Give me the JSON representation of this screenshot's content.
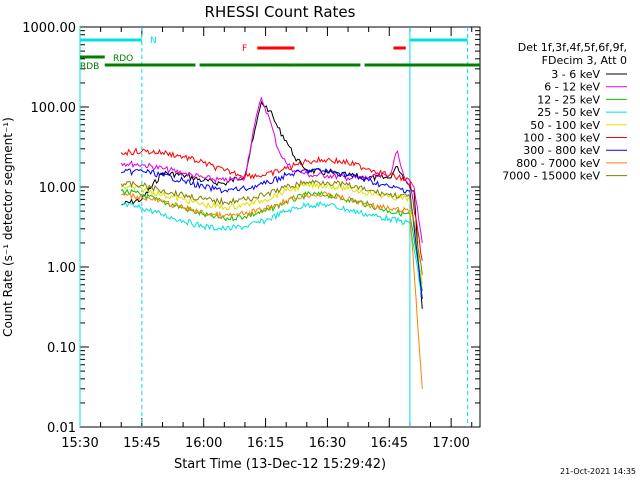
{
  "chart_data": {
    "type": "line",
    "title": "RHESSI Count Rates",
    "xlabel": "Start Time (13-Dec-12 15:29:42)",
    "ylabel": "Count Rate (s⁻¹ detector segment⁻¹)",
    "yscale": "log",
    "xlim": [
      "15:30",
      "17:07"
    ],
    "ylim": [
      0.01,
      1000
    ],
    "x_ticks": [
      "15:30",
      "15:45",
      "16:00",
      "16:15",
      "16:30",
      "16:45",
      "17:00"
    ],
    "y_ticks": [
      "0.01",
      "0.10",
      "1.00",
      "10.00",
      "100.00",
      "1000.00"
    ],
    "legend_header": [
      "Det 1f,3f,4f,5f,6f,9f,",
      "FDecim 3, Att 0"
    ],
    "legend_position": "right",
    "timestamp": "21-Oct-2021 14:35",
    "series": [
      {
        "name": "3 - 6 keV",
        "color": "#000000",
        "x": [
          "15:40",
          "15:45",
          "15:50",
          "15:55",
          "16:00",
          "16:05",
          "16:10",
          "16:12",
          "16:14",
          "16:16",
          "16:18",
          "16:20",
          "16:22",
          "16:24",
          "16:26",
          "16:30",
          "16:35",
          "16:40",
          "16:45",
          "16:47",
          "16:49",
          "16:51",
          "16:52",
          "16:53"
        ],
        "y": [
          6,
          7,
          15,
          14,
          12,
          11,
          14,
          40,
          115,
          90,
          55,
          38,
          24,
          18,
          16,
          15,
          14,
          13,
          13,
          18,
          12,
          9,
          1.5,
          0.3
        ]
      },
      {
        "name": "6 - 12 keV",
        "color": "#e000e0",
        "x": [
          "15:40",
          "15:45",
          "15:50",
          "15:55",
          "16:00",
          "16:05",
          "16:10",
          "16:12",
          "16:14",
          "16:16",
          "16:18",
          "16:20",
          "16:22",
          "16:24",
          "16:26",
          "16:30",
          "16:35",
          "16:40",
          "16:45",
          "16:47",
          "16:49",
          "16:51",
          "16:53"
        ],
        "y": [
          20,
          19,
          17,
          15,
          13,
          12,
          13,
          50,
          130,
          70,
          30,
          20,
          16,
          15,
          14,
          14,
          13,
          13,
          14,
          28,
          12,
          10,
          2
        ]
      },
      {
        "name": "12 - 25 keV",
        "color": "#00c800",
        "x": [
          "15:40",
          "15:45",
          "15:50",
          "15:55",
          "16:00",
          "16:05",
          "16:10",
          "16:15",
          "16:20",
          "16:25",
          "16:30",
          "16:35",
          "16:40",
          "16:45",
          "16:50",
          "16:53"
        ],
        "y": [
          9,
          8,
          6.5,
          5.5,
          4.5,
          4,
          4.3,
          5,
          6.5,
          8,
          8,
          7,
          6,
          5,
          4.5,
          0.5
        ]
      },
      {
        "name": "25 - 50 keV",
        "color": "#00e0e0",
        "x": [
          "15:40",
          "15:45",
          "15:50",
          "15:55",
          "16:00",
          "16:05",
          "16:10",
          "16:15",
          "16:20",
          "16:25",
          "16:30",
          "16:35",
          "16:40",
          "16:45",
          "16:50",
          "16:53"
        ],
        "y": [
          6,
          5.5,
          4.5,
          3.8,
          3.2,
          3,
          3.2,
          3.8,
          5,
          6,
          6,
          5.2,
          4.5,
          4,
          3.5,
          0.4
        ]
      },
      {
        "name": "50 - 100 keV",
        "color": "#e0e000",
        "x": [
          "15:40",
          "15:45",
          "15:50",
          "15:55",
          "16:00",
          "16:05",
          "16:10",
          "16:15",
          "16:20",
          "16:25",
          "16:30",
          "16:35",
          "16:40",
          "16:45",
          "16:50",
          "16:53"
        ],
        "y": [
          10,
          9.5,
          8,
          7,
          6,
          5.5,
          6,
          7,
          9,
          10.5,
          10.5,
          9.5,
          8.5,
          7.5,
          7,
          0.6
        ]
      },
      {
        "name": "100 - 300 keV",
        "color": "#ff0000",
        "x": [
          "15:40",
          "15:45",
          "15:50",
          "15:55",
          "16:00",
          "16:05",
          "16:10",
          "16:15",
          "16:20",
          "16:25",
          "16:30",
          "16:35",
          "16:40",
          "16:45",
          "16:50",
          "16:53"
        ],
        "y": [
          27,
          28,
          27,
          24,
          20,
          16,
          14,
          14,
          17,
          21,
          22,
          20,
          17,
          14,
          12,
          1.2
        ]
      },
      {
        "name": "300 - 800 keV",
        "color": "#0000ff",
        "x": [
          "15:40",
          "15:45",
          "15:50",
          "15:55",
          "16:00",
          "16:05",
          "16:10",
          "16:15",
          "16:20",
          "16:25",
          "16:30",
          "16:35",
          "16:40",
          "16:45",
          "16:50",
          "16:53"
        ],
        "y": [
          15,
          16,
          14,
          12,
          10,
          9,
          9.5,
          11,
          14,
          16,
          16,
          14,
          12,
          10,
          9,
          0.4
        ]
      },
      {
        "name": "800 - 7000 keV",
        "color": "#ff8000",
        "x": [
          "15:40",
          "15:45",
          "15:50",
          "15:55",
          "16:00",
          "16:05",
          "16:10",
          "16:15",
          "16:20",
          "16:25",
          "16:30",
          "16:35",
          "16:40",
          "16:45",
          "16:50",
          "16:53"
        ],
        "y": [
          8,
          7.5,
          6.5,
          5.5,
          4.7,
          4.3,
          4.6,
          5.3,
          6.8,
          8,
          8,
          7,
          6,
          5.3,
          5,
          0.03
        ]
      },
      {
        "name": "7000 - 15000 keV",
        "color": "#808000",
        "x": [
          "15:40",
          "15:45",
          "15:50",
          "15:55",
          "16:00",
          "16:05",
          "16:10",
          "16:15",
          "16:20",
          "16:25",
          "16:30",
          "16:35",
          "16:40",
          "16:45",
          "16:50",
          "16:53"
        ],
        "y": [
          11,
          10.5,
          9,
          8,
          7,
          6.5,
          7,
          8,
          10,
          11.5,
          11.5,
          10.5,
          9,
          8,
          7.5,
          0.8
        ]
      }
    ],
    "attenuator_lines": {
      "color": "#00e0e0",
      "x": [
        "15:30",
        "15:45",
        "16:50",
        "17:04"
      ]
    },
    "state_bars": {
      "cyan_N": {
        "label": "N",
        "color": "#00e0e0",
        "segments": [
          [
            "15:30",
            "15:45"
          ],
          [
            "16:50",
            "17:04"
          ]
        ]
      },
      "red_F": {
        "label": "F",
        "color": "#ff0000",
        "segments": [
          [
            "16:13",
            "16:22"
          ],
          [
            "16:46",
            "16:49"
          ]
        ]
      },
      "green_RDO": {
        "label": "RDO",
        "color": "#008000",
        "segments": [
          [
            "15:30",
            "15:36"
          ]
        ]
      },
      "green_RDB": {
        "label": "RDB",
        "color": "#008000",
        "segments": [
          [
            "15:36",
            "15:58"
          ],
          [
            "15:59",
            "16:22"
          ],
          [
            "16:22",
            "16:38"
          ],
          [
            "16:39",
            "17:07"
          ]
        ]
      }
    }
  }
}
